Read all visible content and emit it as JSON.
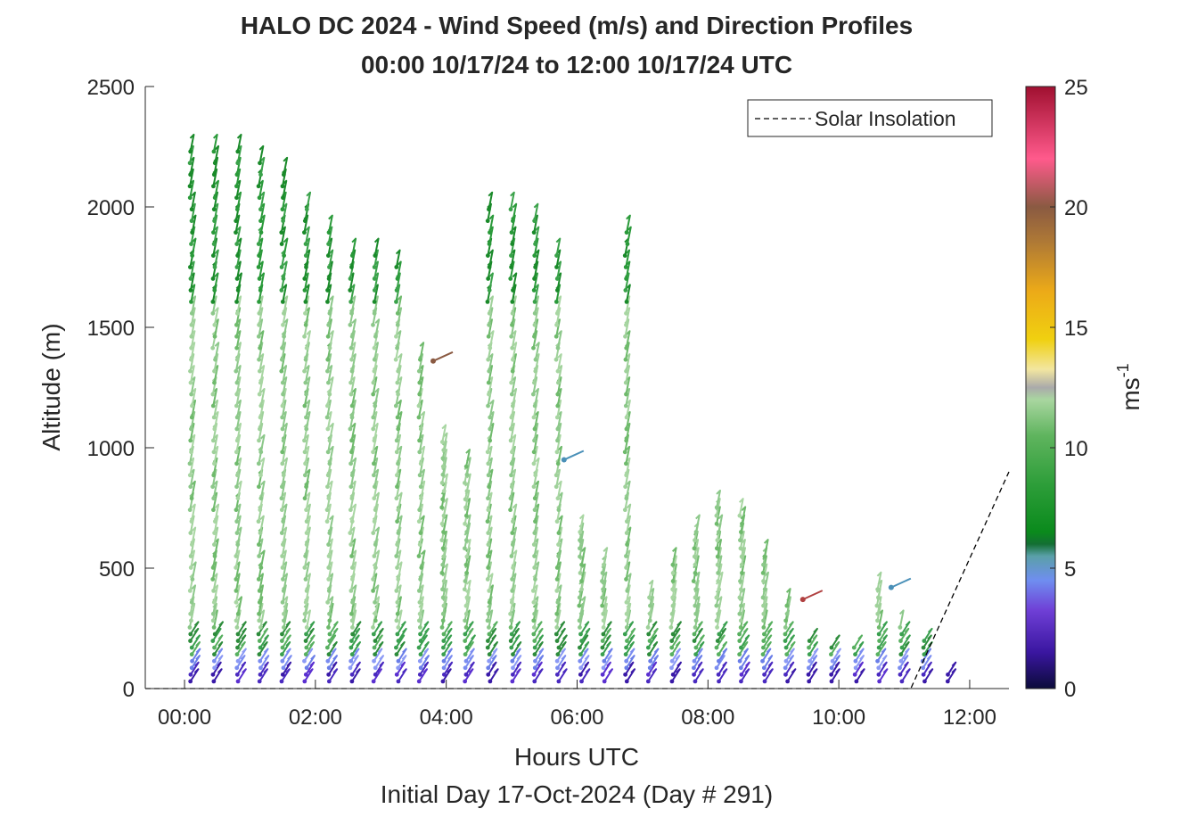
{
  "chart_data": {
    "type": "scatter",
    "title": "HALO DC 2024 - Wind Speed (m/s) and Direction Profiles",
    "subtitle": "00:00 10/17/24 to 12:00 10/17/24  UTC",
    "xlabel": "Hours UTC",
    "xlabel2": "Initial Day 17-Oct-2024 (Day # 291)",
    "ylabel": "Altitude (m)",
    "xlim": [
      -0.6,
      12.6
    ],
    "ylim": [
      0,
      2500
    ],
    "xticks": [
      0,
      2,
      4,
      6,
      8,
      10,
      12
    ],
    "xtick_labels": [
      "00:00",
      "02:00",
      "04:00",
      "06:00",
      "08:00",
      "10:00",
      "12:00"
    ],
    "yticks": [
      0,
      500,
      1000,
      1500,
      2000,
      2500
    ],
    "ytick_labels": [
      "0",
      "500",
      "1000",
      "1500",
      "2000",
      "2500"
    ],
    "legend": {
      "label": "Solar Insolation",
      "placement": "top-right"
    },
    "colorbar": {
      "label": "ms",
      "label_sup": "-1",
      "range": [
        0,
        25
      ],
      "ticks": [
        0,
        5,
        10,
        15,
        20,
        25
      ],
      "tick_labels": [
        "0",
        "5",
        "10",
        "15",
        "20",
        "25"
      ]
    },
    "solar_insolation": {
      "x": [
        -0.6,
        11.1,
        12.6
      ],
      "y": [
        0,
        0,
        900
      ]
    },
    "profiles": [
      {
        "t": 0.1,
        "top": 2240
      },
      {
        "t": 0.45,
        "top": 2240
      },
      {
        "t": 0.8,
        "top": 2240
      },
      {
        "t": 1.15,
        "top": 2200
      },
      {
        "t": 1.5,
        "top": 2150
      },
      {
        "t": 1.85,
        "top": 2000
      },
      {
        "t": 2.2,
        "top": 1920
      },
      {
        "t": 2.55,
        "top": 1800
      },
      {
        "t": 2.9,
        "top": 1800
      },
      {
        "t": 3.25,
        "top": 1780
      },
      {
        "t": 3.6,
        "top": 1400
      },
      {
        "t": 3.95,
        "top": 1030
      },
      {
        "t": 4.3,
        "top": 950
      },
      {
        "t": 4.65,
        "top": 2000
      },
      {
        "t": 5.0,
        "top": 1990
      },
      {
        "t": 5.35,
        "top": 1980
      },
      {
        "t": 5.7,
        "top": 1800
      },
      {
        "t": 6.05,
        "top": 680
      },
      {
        "t": 6.4,
        "top": 540
      },
      {
        "t": 6.75,
        "top": 1920
      },
      {
        "t": 7.1,
        "top": 400
      },
      {
        "t": 7.45,
        "top": 540
      },
      {
        "t": 7.8,
        "top": 650
      },
      {
        "t": 8.15,
        "top": 780
      },
      {
        "t": 8.5,
        "top": 720
      },
      {
        "t": 8.85,
        "top": 560
      },
      {
        "t": 9.2,
        "top": 350
      },
      {
        "t": 9.55,
        "top": 200
      },
      {
        "t": 9.9,
        "top": 180
      },
      {
        "t": 10.25,
        "top": 190
      },
      {
        "t": 10.6,
        "top": 420
      },
      {
        "t": 10.95,
        "top": 280
      },
      {
        "t": 11.3,
        "top": 220
      },
      {
        "t": 11.65,
        "top": 80
      }
    ],
    "outliers": [
      {
        "t": 3.8,
        "alt": 1360,
        "speed": 20
      },
      {
        "t": 5.8,
        "alt": 950,
        "speed": 4.8
      },
      {
        "t": 9.45,
        "alt": 370,
        "speed": 21
      },
      {
        "t": 10.8,
        "alt": 420,
        "speed": 5.5
      }
    ]
  }
}
